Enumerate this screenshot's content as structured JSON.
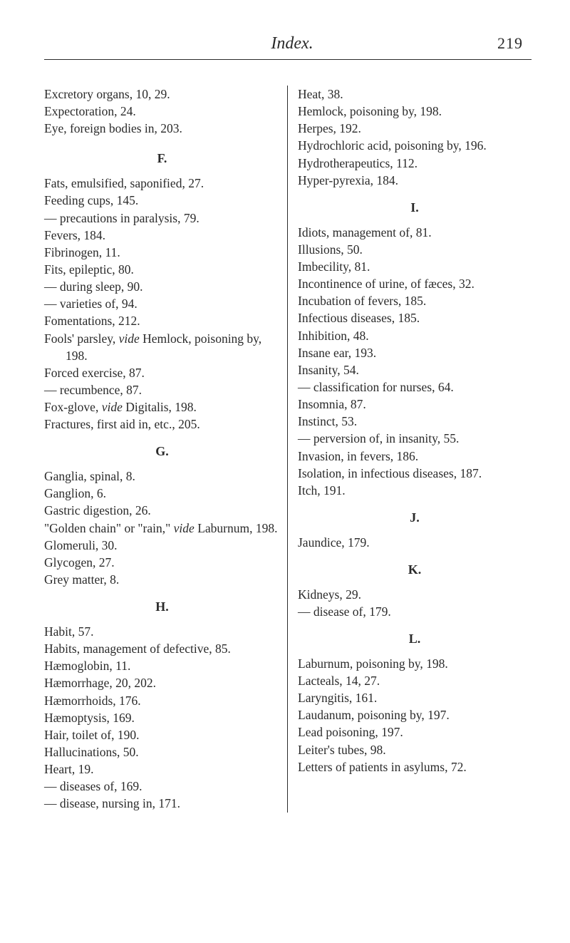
{
  "header": {
    "title": "Index.",
    "page": "219"
  },
  "left": {
    "block1": [
      "Excretory organs, 10, 29.",
      "Expectoration, 24.",
      "Eye, foreign bodies in, 203."
    ],
    "F_head": "F.",
    "F": [
      "Fats, emulsified, saponified, 27.",
      "Feeding cups, 145.",
      "— precautions in paralysis, 79.",
      "Fevers, 184.",
      "Fibrinogen, 11.",
      "Fits, epileptic, 80.",
      "— during sleep, 90.",
      "— varieties of, 94.",
      "Fomentations, 212."
    ],
    "fools": {
      "pre": "Fools' parsley, ",
      "ital": "vide",
      "post": " Hemlock, poisoning by, 198."
    },
    "F2": [
      "Forced exercise, 87.",
      "— recumbence, 87."
    ],
    "fox": {
      "pre": "Fox-glove, ",
      "ital": "vide",
      "post": " Digitalis, 198."
    },
    "F3": [
      "Fractures, first aid in, etc., 205."
    ],
    "G_head": "G.",
    "G1": [
      "Ganglia, spinal, 8.",
      "Ganglion, 6.",
      "Gastric digestion, 26."
    ],
    "golden": {
      "pre": "\"Golden chain\" or \"rain,\" ",
      "ital": "vide",
      "post": " Laburnum, 198."
    },
    "G2": [
      "Glomeruli, 30.",
      "Glycogen, 27.",
      "Grey matter, 8."
    ],
    "H_head": "H.",
    "H": [
      "Habit, 57.",
      "Habits, management of defective, 85.",
      "Hæmoglobin, 11.",
      "Hæmorrhage, 20, 202.",
      "Hæmorrhoids, 176.",
      "Hæmoptysis, 169.",
      "Hair, toilet of, 190.",
      "Hallucinations, 50.",
      "Heart, 19.",
      "— diseases of, 169.",
      "— disease, nursing in, 171."
    ]
  },
  "right": {
    "block1": [
      "Heat, 38.",
      "Hemlock, poisoning by, 198.",
      "Herpes, 192.",
      "Hydrochloric acid, poisoning by, 196.",
      "Hydrotherapeutics, 112.",
      "Hyper-pyrexia, 184."
    ],
    "I_head": "I.",
    "I": [
      "Idiots, management of, 81.",
      "Illusions, 50.",
      "Imbecility, 81.",
      "Incontinence of urine, of fæces, 32.",
      "Incubation of fevers, 185.",
      "Infectious diseases, 185.",
      "Inhibition, 48.",
      "Insane ear, 193.",
      "Insanity, 54.",
      "— classification for nurses, 64.",
      "Insomnia, 87.",
      "Instinct, 53.",
      "— perversion of, in insanity, 55.",
      "Invasion, in fevers, 186.",
      "Isolation, in infectious diseases, 187.",
      "Itch, 191."
    ],
    "J_head": "J.",
    "J": [
      "Jaundice, 179."
    ],
    "K_head": "K.",
    "K": [
      "Kidneys, 29.",
      "— disease of, 179."
    ],
    "L_head": "L.",
    "L": [
      "Laburnum, poisoning by, 198.",
      "Lacteals, 14, 27.",
      "Laryngitis, 161.",
      "Laudanum, poisoning by, 197.",
      "Lead poisoning, 197.",
      "Leiter's tubes, 98.",
      "Letters of patients in asylums, 72."
    ]
  }
}
